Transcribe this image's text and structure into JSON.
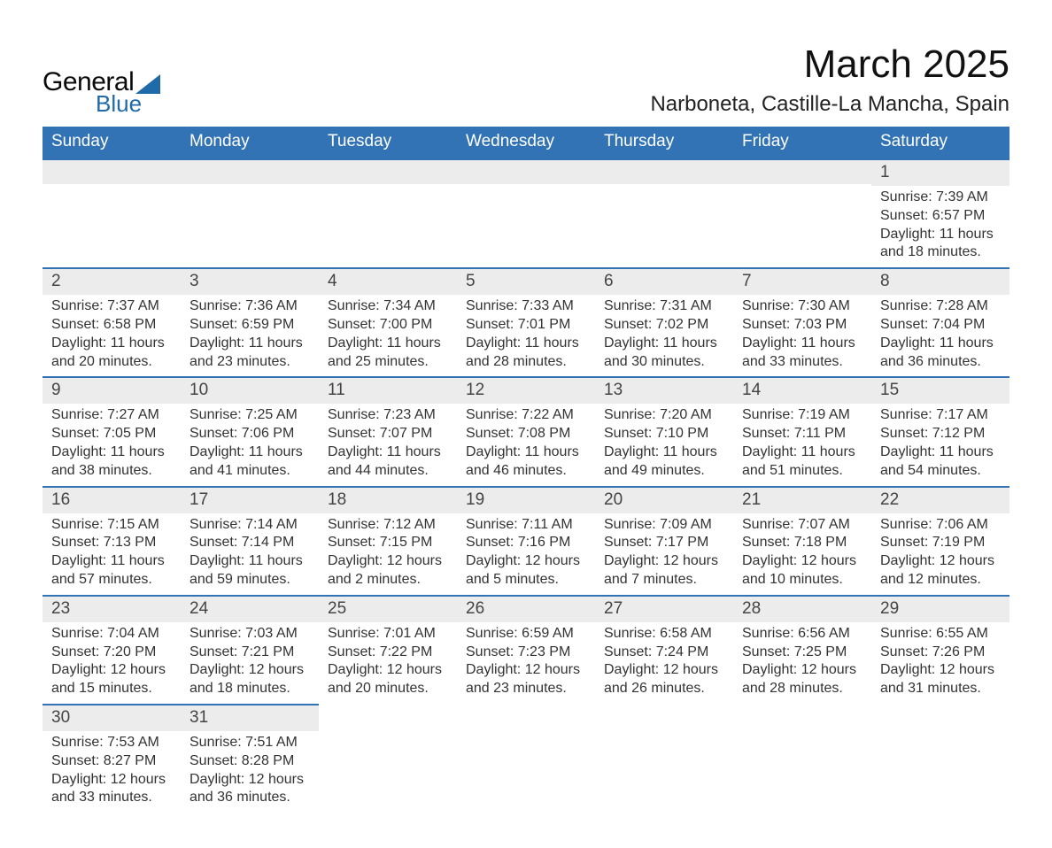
{
  "logo": {
    "word1": "General",
    "word2": "Blue",
    "text_color": "#0a0a0a",
    "accent_color": "#1f6aa8"
  },
  "title": {
    "month": "March 2025",
    "location": "Narboneta, Castille-La Mancha, Spain"
  },
  "colors": {
    "header_bg": "#3273b5",
    "header_text": "#ffffff",
    "daynum_bg": "#ececec",
    "rule": "#3273b5",
    "body_text": "#333333"
  },
  "layout": {
    "columns": 7,
    "cell_font_size_pt": 12,
    "header_font_size_pt": 14,
    "title_font_size_pt": 33,
    "location_font_size_pt": 18
  },
  "weekdays": [
    "Sunday",
    "Monday",
    "Tuesday",
    "Wednesday",
    "Thursday",
    "Friday",
    "Saturday"
  ],
  "weeks": [
    [
      null,
      null,
      null,
      null,
      null,
      null,
      {
        "n": "1",
        "sunrise": "Sunrise: 7:39 AM",
        "sunset": "Sunset: 6:57 PM",
        "day1": "Daylight: 11 hours",
        "day2": "and 18 minutes."
      }
    ],
    [
      {
        "n": "2",
        "sunrise": "Sunrise: 7:37 AM",
        "sunset": "Sunset: 6:58 PM",
        "day1": "Daylight: 11 hours",
        "day2": "and 20 minutes."
      },
      {
        "n": "3",
        "sunrise": "Sunrise: 7:36 AM",
        "sunset": "Sunset: 6:59 PM",
        "day1": "Daylight: 11 hours",
        "day2": "and 23 minutes."
      },
      {
        "n": "4",
        "sunrise": "Sunrise: 7:34 AM",
        "sunset": "Sunset: 7:00 PM",
        "day1": "Daylight: 11 hours",
        "day2": "and 25 minutes."
      },
      {
        "n": "5",
        "sunrise": "Sunrise: 7:33 AM",
        "sunset": "Sunset: 7:01 PM",
        "day1": "Daylight: 11 hours",
        "day2": "and 28 minutes."
      },
      {
        "n": "6",
        "sunrise": "Sunrise: 7:31 AM",
        "sunset": "Sunset: 7:02 PM",
        "day1": "Daylight: 11 hours",
        "day2": "and 30 minutes."
      },
      {
        "n": "7",
        "sunrise": "Sunrise: 7:30 AM",
        "sunset": "Sunset: 7:03 PM",
        "day1": "Daylight: 11 hours",
        "day2": "and 33 minutes."
      },
      {
        "n": "8",
        "sunrise": "Sunrise: 7:28 AM",
        "sunset": "Sunset: 7:04 PM",
        "day1": "Daylight: 11 hours",
        "day2": "and 36 minutes."
      }
    ],
    [
      {
        "n": "9",
        "sunrise": "Sunrise: 7:27 AM",
        "sunset": "Sunset: 7:05 PM",
        "day1": "Daylight: 11 hours",
        "day2": "and 38 minutes."
      },
      {
        "n": "10",
        "sunrise": "Sunrise: 7:25 AM",
        "sunset": "Sunset: 7:06 PM",
        "day1": "Daylight: 11 hours",
        "day2": "and 41 minutes."
      },
      {
        "n": "11",
        "sunrise": "Sunrise: 7:23 AM",
        "sunset": "Sunset: 7:07 PM",
        "day1": "Daylight: 11 hours",
        "day2": "and 44 minutes."
      },
      {
        "n": "12",
        "sunrise": "Sunrise: 7:22 AM",
        "sunset": "Sunset: 7:08 PM",
        "day1": "Daylight: 11 hours",
        "day2": "and 46 minutes."
      },
      {
        "n": "13",
        "sunrise": "Sunrise: 7:20 AM",
        "sunset": "Sunset: 7:10 PM",
        "day1": "Daylight: 11 hours",
        "day2": "and 49 minutes."
      },
      {
        "n": "14",
        "sunrise": "Sunrise: 7:19 AM",
        "sunset": "Sunset: 7:11 PM",
        "day1": "Daylight: 11 hours",
        "day2": "and 51 minutes."
      },
      {
        "n": "15",
        "sunrise": "Sunrise: 7:17 AM",
        "sunset": "Sunset: 7:12 PM",
        "day1": "Daylight: 11 hours",
        "day2": "and 54 minutes."
      }
    ],
    [
      {
        "n": "16",
        "sunrise": "Sunrise: 7:15 AM",
        "sunset": "Sunset: 7:13 PM",
        "day1": "Daylight: 11 hours",
        "day2": "and 57 minutes."
      },
      {
        "n": "17",
        "sunrise": "Sunrise: 7:14 AM",
        "sunset": "Sunset: 7:14 PM",
        "day1": "Daylight: 11 hours",
        "day2": "and 59 minutes."
      },
      {
        "n": "18",
        "sunrise": "Sunrise: 7:12 AM",
        "sunset": "Sunset: 7:15 PM",
        "day1": "Daylight: 12 hours",
        "day2": "and 2 minutes."
      },
      {
        "n": "19",
        "sunrise": "Sunrise: 7:11 AM",
        "sunset": "Sunset: 7:16 PM",
        "day1": "Daylight: 12 hours",
        "day2": "and 5 minutes."
      },
      {
        "n": "20",
        "sunrise": "Sunrise: 7:09 AM",
        "sunset": "Sunset: 7:17 PM",
        "day1": "Daylight: 12 hours",
        "day2": "and 7 minutes."
      },
      {
        "n": "21",
        "sunrise": "Sunrise: 7:07 AM",
        "sunset": "Sunset: 7:18 PM",
        "day1": "Daylight: 12 hours",
        "day2": "and 10 minutes."
      },
      {
        "n": "22",
        "sunrise": "Sunrise: 7:06 AM",
        "sunset": "Sunset: 7:19 PM",
        "day1": "Daylight: 12 hours",
        "day2": "and 12 minutes."
      }
    ],
    [
      {
        "n": "23",
        "sunrise": "Sunrise: 7:04 AM",
        "sunset": "Sunset: 7:20 PM",
        "day1": "Daylight: 12 hours",
        "day2": "and 15 minutes."
      },
      {
        "n": "24",
        "sunrise": "Sunrise: 7:03 AM",
        "sunset": "Sunset: 7:21 PM",
        "day1": "Daylight: 12 hours",
        "day2": "and 18 minutes."
      },
      {
        "n": "25",
        "sunrise": "Sunrise: 7:01 AM",
        "sunset": "Sunset: 7:22 PM",
        "day1": "Daylight: 12 hours",
        "day2": "and 20 minutes."
      },
      {
        "n": "26",
        "sunrise": "Sunrise: 6:59 AM",
        "sunset": "Sunset: 7:23 PM",
        "day1": "Daylight: 12 hours",
        "day2": "and 23 minutes."
      },
      {
        "n": "27",
        "sunrise": "Sunrise: 6:58 AM",
        "sunset": "Sunset: 7:24 PM",
        "day1": "Daylight: 12 hours",
        "day2": "and 26 minutes."
      },
      {
        "n": "28",
        "sunrise": "Sunrise: 6:56 AM",
        "sunset": "Sunset: 7:25 PM",
        "day1": "Daylight: 12 hours",
        "day2": "and 28 minutes."
      },
      {
        "n": "29",
        "sunrise": "Sunrise: 6:55 AM",
        "sunset": "Sunset: 7:26 PM",
        "day1": "Daylight: 12 hours",
        "day2": "and 31 minutes."
      }
    ],
    [
      {
        "n": "30",
        "sunrise": "Sunrise: 7:53 AM",
        "sunset": "Sunset: 8:27 PM",
        "day1": "Daylight: 12 hours",
        "day2": "and 33 minutes."
      },
      {
        "n": "31",
        "sunrise": "Sunrise: 7:51 AM",
        "sunset": "Sunset: 8:28 PM",
        "day1": "Daylight: 12 hours",
        "day2": "and 36 minutes."
      },
      null,
      null,
      null,
      null,
      null
    ]
  ]
}
